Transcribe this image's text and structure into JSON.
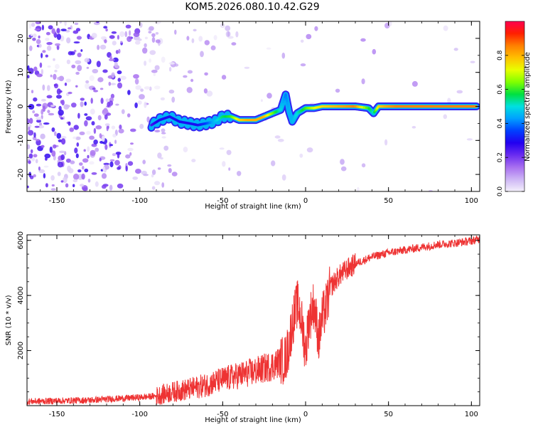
{
  "title": "KOM5.2026.080.10.42.G29",
  "chart_data": [
    {
      "type": "heatmap",
      "title": "KOM5.2026.080.10.42.G29",
      "xlabel": "Height of straight line (km)",
      "ylabel": "Frequency (Hz)",
      "xlim": [
        -168,
        105
      ],
      "ylim": [
        -25,
        25
      ],
      "xticks": [
        -150,
        -100,
        -50,
        0,
        50,
        100
      ],
      "yticks": [
        -20,
        -10,
        0,
        10,
        20
      ],
      "colorbar": {
        "label": "Normalized spectral amplitude",
        "range": [
          0,
          1
        ],
        "ticks": [
          0.0,
          0.2,
          0.4,
          0.6,
          0.8
        ],
        "tick_labels": [
          "0.0",
          "0.2",
          "0.4",
          "0.6",
          "0.8"
        ],
        "colormap": [
          "#f4f0fb",
          "#cdb5f5",
          "#a86ff0",
          "#6a2cf0",
          "#2200f0",
          "#0040ff",
          "#00a0ff",
          "#00e0e0",
          "#00e040",
          "#80ff00",
          "#e8ff00",
          "#ffc000",
          "#ff8000",
          "#ff2000",
          "#ff0050"
        ]
      },
      "ridge": {
        "description": "spectral peak frequency vs height",
        "x": [
          -93,
          -88,
          -82,
          -76,
          -70,
          -65,
          -60,
          -55,
          -50,
          -45,
          -40,
          -35,
          -30,
          -25,
          -20,
          -15,
          -12,
          -10,
          -8,
          -5,
          0,
          5,
          10,
          20,
          30,
          38,
          41,
          44,
          48,
          55,
          70,
          103
        ],
        "y": [
          -5.5,
          -4,
          -3,
          -4.5,
          -5,
          -5.5,
          -5,
          -4.5,
          -3,
          -3,
          -4,
          -4,
          -4,
          -3,
          -2,
          -1,
          3.5,
          -1.5,
          -4.5,
          -2,
          -0.5,
          -0.5,
          0,
          0,
          0,
          -0.5,
          -2,
          0,
          0,
          0,
          0,
          0
        ],
        "amplitude": [
          0.25,
          0.3,
          0.3,
          0.3,
          0.3,
          0.3,
          0.35,
          0.45,
          0.55,
          0.6,
          0.75,
          0.8,
          0.8,
          0.8,
          0.65,
          0.5,
          0.4,
          0.45,
          0.45,
          0.5,
          0.6,
          0.7,
          0.75,
          0.8,
          0.85,
          0.6,
          0.5,
          0.75,
          0.8,
          0.85,
          0.85,
          0.85
        ]
      }
    },
    {
      "type": "line",
      "xlabel": "Height of straight line (km)",
      "ylabel": "SNR (10 * v/v)",
      "xlim": [
        -168,
        105
      ],
      "ylim": [
        0,
        6200
      ],
      "xticks": [
        -150,
        -100,
        -50,
        0,
        50,
        100
      ],
      "yticks": [
        2000,
        4000,
        6000
      ],
      "series": [
        {
          "name": "SNR",
          "color": "#ee3333",
          "x": [
            -168,
            -130,
            -100,
            -90,
            -80,
            -70,
            -60,
            -50,
            -40,
            -30,
            -20,
            -12,
            -10,
            -8,
            -5,
            -3,
            0,
            2,
            5,
            8,
            10,
            12,
            15,
            20,
            25,
            30,
            40,
            50,
            60,
            70,
            80,
            90,
            100,
            105
          ],
          "y": [
            150,
            200,
            300,
            350,
            500,
            600,
            750,
            950,
            1100,
            1250,
            1450,
            1700,
            2200,
            3000,
            3700,
            3300,
            2000,
            3100,
            3700,
            2400,
            3200,
            3500,
            4300,
            4700,
            4950,
            5150,
            5400,
            5550,
            5650,
            5750,
            5850,
            5900,
            5980,
            6050
          ]
        }
      ]
    }
  ]
}
